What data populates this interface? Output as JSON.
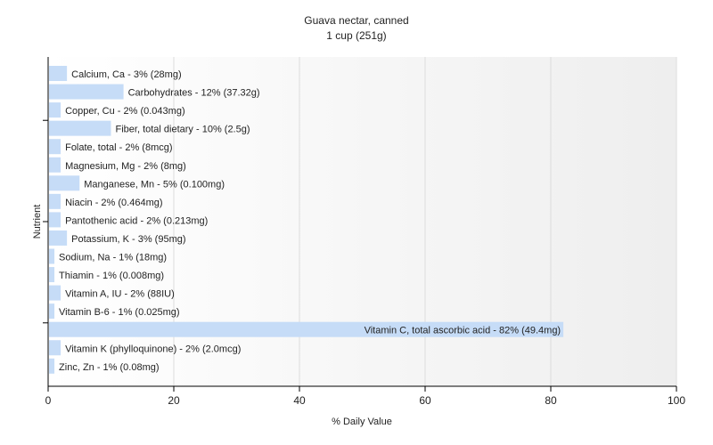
{
  "chart_data": {
    "type": "bar",
    "orientation": "horizontal",
    "title": "Guava nectar, canned",
    "subtitle": "1 cup (251g)",
    "xlabel": "% Daily Value",
    "ylabel": "Nutrient",
    "xlim": [
      0,
      100
    ],
    "xticks": [
      0,
      20,
      40,
      60,
      80,
      100
    ],
    "grid": true,
    "bar_color": "#c6dcf7",
    "categories": [
      "Calcium, Ca",
      "Carbohydrates",
      "Copper, Cu",
      "Fiber, total dietary",
      "Folate, total",
      "Magnesium, Mg",
      "Manganese, Mn",
      "Niacin",
      "Pantothenic acid",
      "Potassium, K",
      "Sodium, Na",
      "Thiamin",
      "Vitamin A, IU",
      "Vitamin B-6",
      "Vitamin C, total ascorbic acid",
      "Vitamin K (phylloquinone)",
      "Zinc, Zn"
    ],
    "values": [
      3,
      12,
      2,
      10,
      2,
      2,
      5,
      2,
      2,
      3,
      1,
      1,
      2,
      1,
      82,
      2,
      1
    ],
    "labels": [
      "Calcium, Ca - 3% (28mg)",
      "Carbohydrates - 12% (37.32g)",
      "Copper, Cu - 2% (0.043mg)",
      "Fiber, total dietary - 10% (2.5g)",
      "Folate, total - 2% (8mcg)",
      "Magnesium, Mg - 2% (8mg)",
      "Manganese, Mn - 5% (0.100mg)",
      "Niacin - 2% (0.464mg)",
      "Pantothenic acid - 2% (0.213mg)",
      "Potassium, K - 3% (95mg)",
      "Sodium, Na - 1% (18mg)",
      "Thiamin - 1% (0.008mg)",
      "Vitamin A, IU - 2% (88IU)",
      "Vitamin B-6 - 1% (0.025mg)",
      "Vitamin C, total ascorbic acid - 82% (49.4mg)",
      "Vitamin K (phylloquinone) - 2% (2.0mcg)",
      "Zinc, Zn - 1% (0.08mg)"
    ]
  }
}
